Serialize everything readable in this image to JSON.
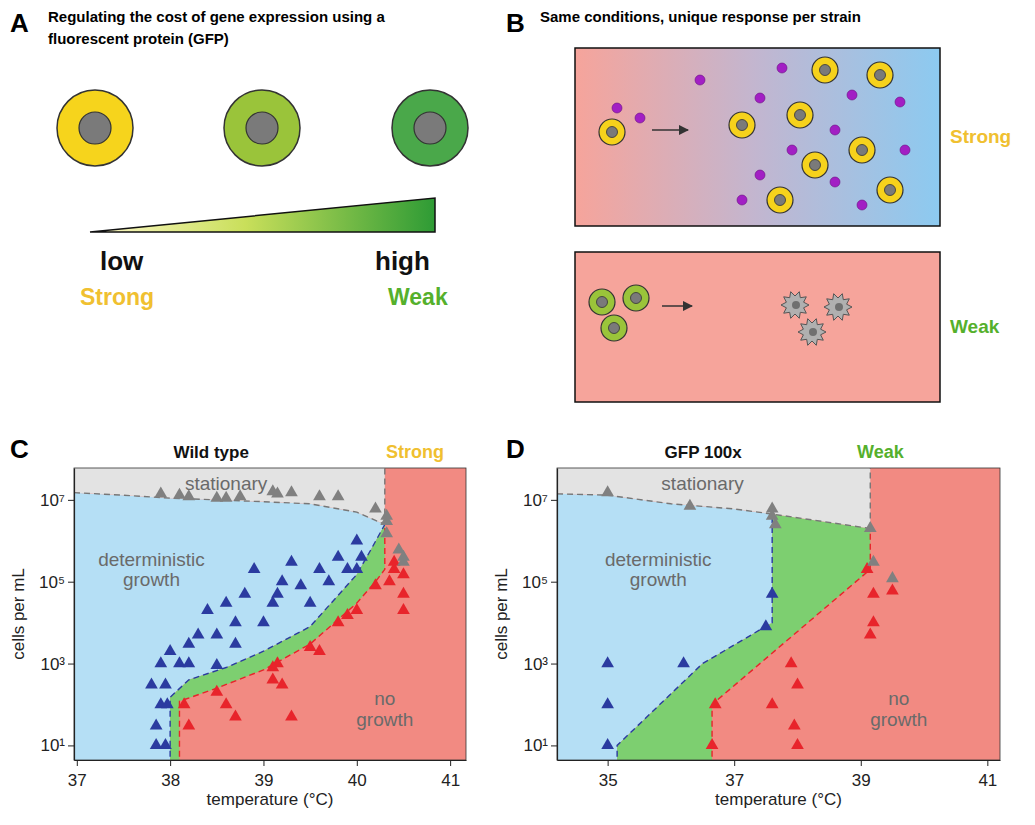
{
  "panel_a": {
    "letter": "A",
    "title": "Regulating the cost of gene expression using a fluorescent protein (GFP)",
    "low": "low",
    "high": "high",
    "strong": "Strong",
    "weak": "Weak"
  },
  "panel_b": {
    "letter": "B",
    "title": "Same conditions, unique response per strain",
    "strong": "Strong",
    "weak": "Weak"
  },
  "chart_data": [
    {
      "letter": "C",
      "type": "scatter",
      "title": "Wild type",
      "tag": {
        "text": "Strong",
        "color": "#f0c030"
      },
      "x_label": "temperature (°C)",
      "y_label": "cells per mL",
      "log": "y",
      "xlim": [
        36.97,
        41.17
      ],
      "ylim": [
        4.4,
        60000000
      ],
      "xticks": [
        37,
        38,
        39,
        40,
        41
      ],
      "yticks": [
        {
          "value": 10,
          "label": "10¹"
        },
        {
          "value": 1000,
          "label": "10³"
        },
        {
          "value": 100000,
          "label": "10⁵"
        },
        {
          "value": 10000000,
          "label": "10⁷"
        }
      ],
      "fills": {
        "stationary": "#e3e3e3",
        "growth": "#b5dff5",
        "transition": "#7dcf70",
        "no_growth": "#f28a82"
      },
      "boundaries": [
        {
          "color": "#777777",
          "line_style": "dashed",
          "points": [
            [
              36.97,
              15000000
            ],
            [
              37.5,
              13000000
            ],
            [
              38,
              11000000
            ],
            [
              38.5,
              10000000
            ],
            [
              39,
              9000000
            ],
            [
              39.5,
              8000000
            ],
            [
              40,
              5000000
            ],
            [
              40.3,
              2500000
            ]
          ]
        },
        {
          "color": "#2b3ba0",
          "line_style": "dashed",
          "points": [
            [
              38.0,
              3
            ],
            [
              38.0,
              150
            ],
            [
              38.2,
              400
            ],
            [
              38.6,
              800
            ],
            [
              39.0,
              2000
            ],
            [
              39.5,
              8000
            ],
            [
              40.0,
              150000
            ],
            [
              40.15,
              600000
            ],
            [
              40.3,
              2500000
            ]
          ]
        },
        {
          "color": "#e8242b",
          "line_style": "dashed",
          "points": [
            [
              38.1,
              3
            ],
            [
              38.1,
              120
            ],
            [
              38.5,
              250
            ],
            [
              39.0,
              700
            ],
            [
              39.5,
              3000
            ],
            [
              40.0,
              30000
            ],
            [
              40.2,
              100000
            ],
            [
              40.3,
              200000
            ],
            [
              40.3,
              2500000
            ]
          ]
        }
      ],
      "annotations": [
        {
          "text": "stationary",
          "x": 38.6,
          "y": 25000000
        },
        {
          "text": "deterministic growth",
          "x": 37.8,
          "y": 200000
        },
        {
          "text": "no growth",
          "x": 40.3,
          "y": 80
        }
      ],
      "series": [
        {
          "color": "#2b3ba0",
          "marker": "triangle",
          "x": [
            37.85,
            37.95,
            37.85,
            37.9,
            37.97,
            37.8,
            37.95,
            38.1,
            38.2,
            37.9,
            38.0,
            38.2,
            38.5,
            38.3,
            38.6,
            38.7,
            38.8,
            38.7,
            39.0,
            39.1,
            39.2,
            39.15,
            39.4,
            39.5,
            39.6,
            39.7,
            39.8,
            39.9,
            40.0,
            40.05,
            40.0,
            38.4,
            38.9,
            38.5,
            39.3
          ],
          "values": [
            10,
            10,
            30,
            100,
            100,
            300,
            300,
            1000,
            1000,
            1000,
            2000,
            3000,
            900,
            5000,
            30000,
            10000,
            50000,
            3000,
            10000,
            30000,
            100000,
            50000,
            80000,
            30000,
            200000,
            100000,
            400000,
            200000,
            1000000,
            400000,
            200000,
            20000,
            200000,
            5000,
            300000
          ]
        },
        {
          "color": "#e8242b",
          "marker": "triangle",
          "x": [
            38.15,
            38.2,
            38.5,
            38.6,
            38.7,
            39.1,
            39.1,
            39.2,
            39.15,
            39.3,
            39.5,
            39.6,
            39.8,
            39.9,
            40.0,
            40.2,
            40.35,
            40.4,
            40.5,
            40.5,
            40.4,
            40.5
          ],
          "values": [
            100,
            30,
            200,
            100,
            50,
            800,
            400,
            300,
            1000,
            50,
            2500,
            2000,
            10000,
            15000,
            20000,
            80000,
            100000,
            200000,
            50000,
            20000,
            300000,
            150000
          ]
        },
        {
          "color": "#808080",
          "marker": "triangle",
          "x": [
            37.9,
            38.1,
            38.2,
            38.5,
            38.6,
            38.75,
            39.1,
            39.15,
            39.3,
            39.6,
            39.8,
            40.2,
            40.32,
            40.32,
            40.32,
            40.45,
            40.5,
            40.5
          ],
          "values": [
            14000000,
            13000000,
            12000000,
            11000000,
            11000000,
            12000000,
            16000000,
            14000000,
            15000000,
            12000000,
            12000000,
            6000000,
            4000000,
            3000000,
            1500000,
            600000,
            400000,
            300000
          ]
        }
      ]
    },
    {
      "letter": "D",
      "type": "scatter",
      "title": "GFP 100x",
      "tag": {
        "text": "Weak",
        "color": "#55b02c"
      },
      "x_label": "temperature (°C)",
      "y_label": "cells per mL",
      "log": "y",
      "xlim": [
        34.2,
        41.2
      ],
      "ylim": [
        4.4,
        60000000
      ],
      "xticks": [
        35,
        37,
        39,
        41
      ],
      "yticks": [
        {
          "value": 10,
          "label": "10¹"
        },
        {
          "value": 1000,
          "label": "10³"
        },
        {
          "value": 100000,
          "label": "10⁵"
        },
        {
          "value": 10000000,
          "label": "10⁷"
        }
      ],
      "fills": {
        "stationary": "#e3e3e3",
        "growth": "#b5dff5",
        "transition": "#7dcf70",
        "no_growth": "#f28a82"
      },
      "boundaries": [
        {
          "color": "#777777",
          "line_style": "dashed",
          "points": [
            [
              34.2,
              14000000
            ],
            [
              35,
              13000000
            ],
            [
              36,
              8000000
            ],
            [
              37,
              6000000
            ],
            [
              37.6,
              4500000
            ],
            [
              39.15,
              2000000
            ]
          ]
        },
        {
          "color": "#2b3ba0",
          "line_style": "dashed",
          "points": [
            [
              35.15,
              3
            ],
            [
              35.15,
              10
            ],
            [
              36.5,
              1000
            ],
            [
              37.6,
              10000
            ],
            [
              37.6,
              4500000
            ]
          ]
        },
        {
          "color": "#e8242b",
          "line_style": "dashed",
          "points": [
            [
              36.65,
              3
            ],
            [
              36.65,
              100
            ],
            [
              39.15,
              200000
            ],
            [
              39.15,
              2000000
            ]
          ]
        }
      ],
      "annotations": [
        {
          "text": "stationary",
          "x": 36.5,
          "y": 25000000
        },
        {
          "text": "deterministic growth",
          "x": 35.8,
          "y": 200000
        },
        {
          "text": "no growth",
          "x": 39.6,
          "y": 80
        }
      ],
      "series": [
        {
          "color": "#2b3ba0",
          "marker": "triangle",
          "x": [
            35.0,
            35.0,
            35.0,
            36.2,
            37.6,
            37.5
          ],
          "values": [
            10,
            100,
            1000,
            1000,
            50000,
            8000
          ]
        },
        {
          "color": "#e8242b",
          "marker": "triangle",
          "x": [
            36.65,
            36.7,
            37.6,
            37.9,
            38.0,
            37.95,
            38.0,
            39.1,
            39.2,
            39.15,
            39.2,
            39.5
          ],
          "values": [
            10,
            100,
            100,
            1000,
            10,
            30,
            300,
            200000,
            50000,
            5000,
            10000,
            60000
          ]
        },
        {
          "color": "#808080",
          "marker": "triangle",
          "x": [
            35.0,
            36.3,
            37.6,
            37.6,
            37.65,
            39.15,
            39.5,
            39.2
          ],
          "values": [
            15000000,
            7000000,
            6000000,
            4000000,
            2500000,
            2000000,
            120000,
            300000
          ]
        }
      ]
    }
  ]
}
